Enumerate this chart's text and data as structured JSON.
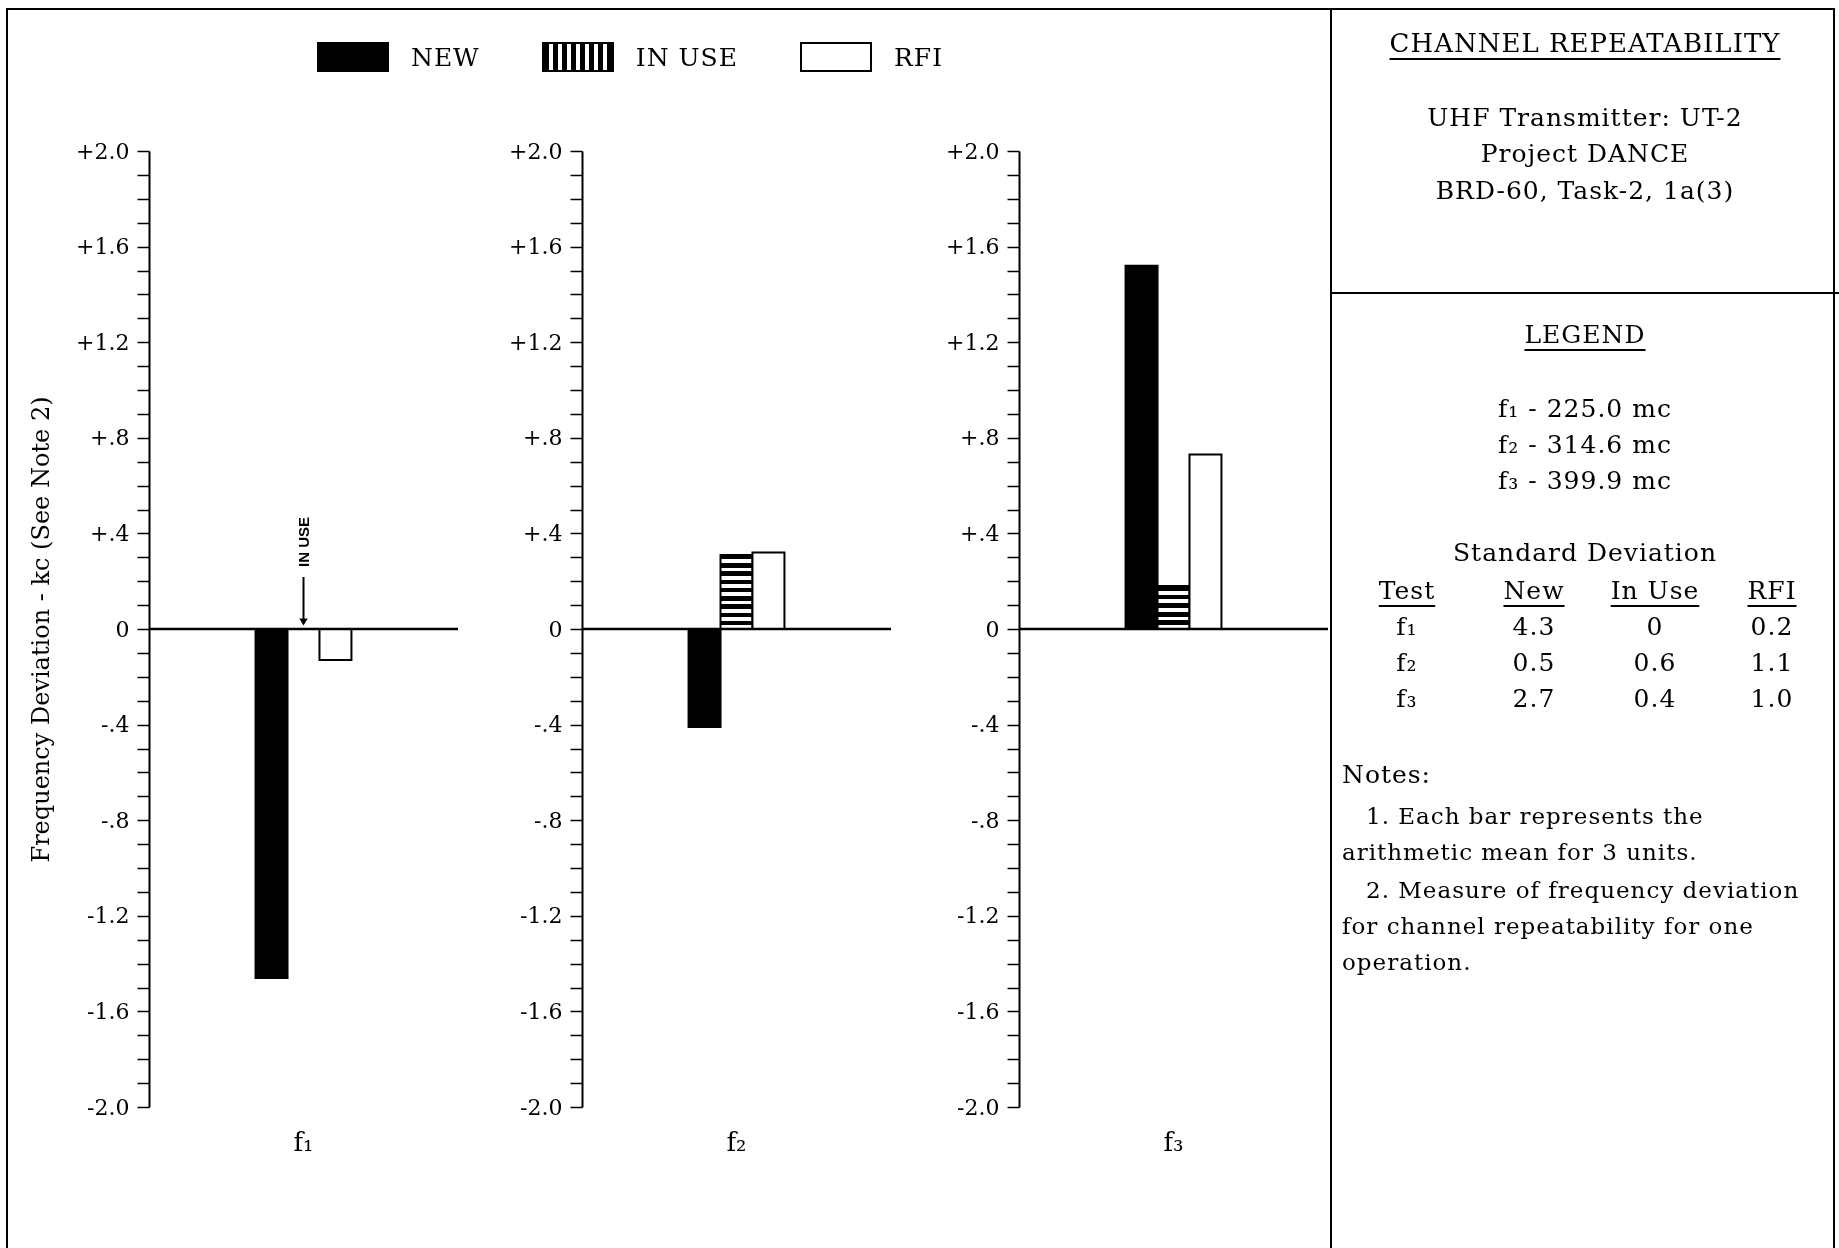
{
  "chart_data": [
    {
      "type": "bar",
      "ylabel": "Frequency Deviation - kc (See Note 2)",
      "categories": [
        "f₁"
      ],
      "legend": "top",
      "series": [
        {
          "name": "NEW",
          "color": "#000000",
          "values": [
            -1.46
          ]
        },
        {
          "name": "IN USE",
          "color": "#000000",
          "values": [
            0
          ]
        },
        {
          "name": "RFI",
          "color": "#ffffff",
          "values": [
            -0.13
          ]
        }
      ],
      "annotations": [
        {
          "text": "IN USE",
          "x": "f₁",
          "y": 0
        }
      ],
      "ylim": [
        -2.0,
        2.0
      ],
      "yticks": [
        {
          "value": -2.0,
          "label": "-2.0"
        },
        {
          "value": -1.9,
          "label": null
        },
        {
          "value": -1.8,
          "label": null
        },
        {
          "value": -1.7,
          "label": null
        },
        {
          "value": -1.6,
          "label": "-1.6"
        },
        {
          "value": -1.5,
          "label": null
        },
        {
          "value": -1.4,
          "label": null
        },
        {
          "value": -1.3,
          "label": null
        },
        {
          "value": -1.2,
          "label": "-1.2"
        },
        {
          "value": -1.1,
          "label": null
        },
        {
          "value": -1.0,
          "label": null
        },
        {
          "value": -0.9,
          "label": null
        },
        {
          "value": -0.8,
          "label": "-.8"
        },
        {
          "value": -0.7,
          "label": null
        },
        {
          "value": -0.6,
          "label": null
        },
        {
          "value": -0.5,
          "label": null
        },
        {
          "value": -0.4,
          "label": "-.4"
        },
        {
          "value": -0.3,
          "label": null
        },
        {
          "value": -0.2,
          "label": null
        },
        {
          "value": -0.1,
          "label": null
        },
        {
          "value": 0,
          "label": "0"
        },
        {
          "value": 0.1,
          "label": null
        },
        {
          "value": 0.2,
          "label": null
        },
        {
          "value": 0.3,
          "label": null
        },
        {
          "value": 0.4,
          "label": "+.4"
        },
        {
          "value": 0.5,
          "label": null
        },
        {
          "value": 0.6,
          "label": null
        },
        {
          "value": 0.7,
          "label": null
        },
        {
          "value": 0.8,
          "label": "+.8"
        },
        {
          "value": 0.9,
          "label": null
        },
        {
          "value": 1.0,
          "label": null
        },
        {
          "value": 1.1,
          "label": null
        },
        {
          "value": 1.2,
          "label": "+1.2"
        },
        {
          "value": 1.3,
          "label": null
        },
        {
          "value": 1.4,
          "label": null
        },
        {
          "value": 1.5,
          "label": null
        },
        {
          "value": 1.6,
          "label": "+1.6"
        },
        {
          "value": 1.7,
          "label": null
        },
        {
          "value": 1.8,
          "label": null
        },
        {
          "value": 1.9,
          "label": null
        },
        {
          "value": 2.0,
          "label": "+2.0"
        }
      ]
    },
    {
      "type": "bar",
      "categories": [
        "f₂"
      ],
      "series": [
        {
          "color": "#000000",
          "values": [
            -0.41
          ]
        },
        {
          "color": "#000000",
          "values": [
            0.31
          ]
        },
        {
          "color": "#ffffff",
          "values": [
            0.32
          ]
        }
      ],
      "ylim": [
        -2.0,
        2.0
      ],
      "yticks": [
        {
          "value": -2.0,
          "label": "-2.0"
        },
        {
          "value": -1.9,
          "label": null
        },
        {
          "value": -1.8,
          "label": null
        },
        {
          "value": -1.7,
          "label": null
        },
        {
          "value": -1.6,
          "label": "-1.6"
        },
        {
          "value": -1.5,
          "label": null
        },
        {
          "value": -1.4,
          "label": null
        },
        {
          "value": -1.3,
          "label": null
        },
        {
          "value": -1.2,
          "label": "-1.2"
        },
        {
          "value": -1.1,
          "label": null
        },
        {
          "value": -1.0,
          "label": null
        },
        {
          "value": -0.9,
          "label": null
        },
        {
          "value": -0.8,
          "label": "-.8"
        },
        {
          "value": -0.7,
          "label": null
        },
        {
          "value": -0.6,
          "label": null
        },
        {
          "value": -0.5,
          "label": null
        },
        {
          "value": -0.4,
          "label": "-.4"
        },
        {
          "value": -0.3,
          "label": null
        },
        {
          "value": -0.2,
          "label": null
        },
        {
          "value": -0.1,
          "label": null
        },
        0,
        {
          "value": 0.1,
          "label": null
        },
        {
          "value": 0.2,
          "label": null
        },
        {
          "value": 0.3,
          "label": null
        },
        {
          "value": 0.4,
          "label": "+.4"
        },
        {
          "value": 0.5,
          "label": null
        },
        {
          "value": 0.6,
          "label": null
        },
        {
          "value": 0.7,
          "label": null
        },
        {
          "value": 0.8,
          "label": "+.8"
        },
        {
          "value": 0.9,
          "label": null
        },
        {
          "value": 1.0,
          "label": null
        },
        {
          "value": 1.1,
          "label": null
        },
        {
          "value": 1.2,
          "label": "+1.2"
        },
        {
          "value": 1.3,
          "label": null
        },
        {
          "value": 1.4,
          "label": null
        },
        {
          "value": 1.5,
          "label": null
        },
        {
          "value": 1.6,
          "label": "+1.6"
        },
        {
          "value": 1.7,
          "label": null
        },
        {
          "value": 1.8,
          "label": null
        },
        {
          "value": 1.9,
          "label": null
        },
        {
          "value": 2.0,
          "label": "+2.0"
        }
      ]
    },
    {
      "type": "bar",
      "categories": [
        "f₃"
      ],
      "series": [
        {
          "color": "#000000",
          "values": [
            1.52
          ]
        },
        {
          "color": "#000000",
          "values": [
            0.18
          ]
        },
        {
          "color": "#ffffff",
          "values": [
            0.73
          ]
        }
      ],
      "ylim": [
        -2.0,
        2.0
      ],
      "yticks": [
        {
          "value": -2.0,
          "label": "-2.0"
        },
        {
          "value": -1.9,
          "label": null
        },
        {
          "value": -1.8,
          "label": null
        },
        {
          "value": -1.7,
          "label": null
        },
        {
          "value": -1.6,
          "label": "-1.6"
        },
        {
          "value": -1.5,
          "label": null
        },
        {
          "value": -1.4,
          "label": null
        },
        {
          "value": -1.3,
          "label": null
        },
        {
          "value": -1.2,
          "label": "-1.2"
        },
        {
          "value": -1.1,
          "label": null
        },
        {
          "value": -1.0,
          "label": null
        },
        {
          "value": -0.9,
          "label": null
        },
        {
          "value": -0.8,
          "label": "-.8"
        },
        {
          "value": -0.7,
          "label": null
        },
        {
          "value": -0.6,
          "label": null
        },
        {
          "value": -0.5,
          "label": null
        },
        {
          "value": -0.4,
          "label": "-.4"
        },
        {
          "value": -0.3,
          "label": null
        },
        {
          "value": -0.2,
          "label": null
        },
        {
          "value": -0.1,
          "label": null
        },
        0,
        {
          "value": 0.1,
          "label": null
        },
        {
          "value": 0.2,
          "label": null
        },
        {
          "value": 0.3,
          "label": null
        },
        {
          "value": 0.4,
          "label": "+.4"
        },
        {
          "value": 0.5,
          "label": null
        },
        {
          "value": 0.6,
          "label": null
        },
        {
          "value": 0.7,
          "label": null
        },
        {
          "value": 0.8,
          "label": "+.8"
        },
        {
          "value": 0.9,
          "label": null
        },
        {
          "value": 1.0,
          "label": null
        },
        {
          "value": 1.1,
          "label": null
        },
        {
          "value": 1.2,
          "label": "+1.2"
        },
        {
          "value": 1.3,
          "label": null
        },
        {
          "value": 1.4,
          "label": null
        },
        {
          "value": 1.5,
          "label": null
        },
        {
          "value": 1.6,
          "label": "+1.6"
        },
        {
          "value": 1.7,
          "label": null
        },
        {
          "value": 1.8,
          "label": null
        },
        {
          "value": 1.9,
          "label": null
        },
        {
          "value": 2.0,
          "label": "+2.0"
        }
      ]
    },
    {
      "type": "other",
      "title": "CHANNEL REPEATABILITY",
      "annotations": [
        "UHF Transmitter: UT-2",
        "Project DANCE",
        "BRD-60, Task-2, 1a(3)",
        "LEGEND",
        "f₁ - 225.0 mc",
        "f₂ - 314.6 mc",
        "f₃ - 399.9 mc",
        "Standard Deviation",
        "Test",
        "New",
        "In Use",
        "RFI",
        "f₁",
        "4.3",
        "0",
        "0.2",
        "f₂",
        "0.5",
        "0.6",
        "1.1",
        "f₃",
        "2.7",
        "0.4",
        "1.0",
        "Notes:",
        "1. Each bar represents the arithmetic mean for 3 units.",
        "2. Measure of frequency deviation for channel repeatability for one operation."
      ]
    }
  ]
}
